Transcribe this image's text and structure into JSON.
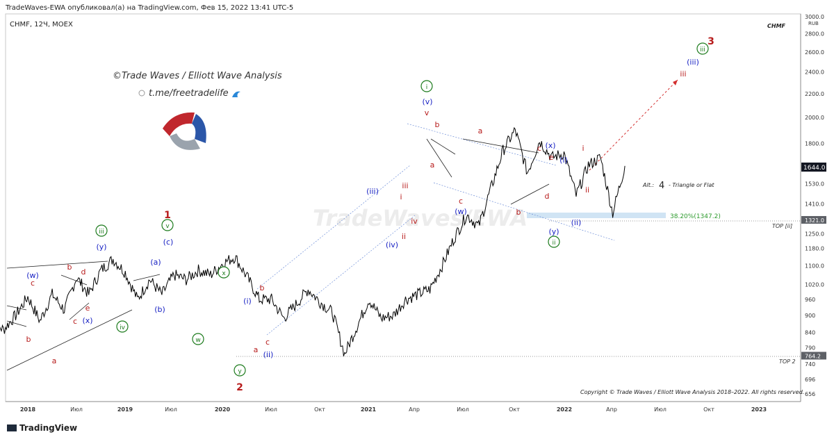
{
  "header": {
    "publisher_line": "TradeWaves-EWA опубликовал(а) на TradingView.com, Фев 15, 2022 13:41 UTC-5"
  },
  "chart_title": "CHMF, 12Ч, MOEX",
  "symbol_watermark": "CHMF",
  "branding": {
    "line1": "©Trade Waves / Elliott Wave Analysis",
    "line2": "t.me/freetradelife",
    "watermark": "TradeWaves/EWA",
    "copyright": "Copyright © Trade Waves / Elliott Wave Analysis 2018–2022. All rights reserved."
  },
  "footer": {
    "logo_text": "TradingView"
  },
  "colors": {
    "red": "#b71c1c",
    "blue": "#1a23c4",
    "green": "#1b7a1b",
    "price": "#000000",
    "fib": "#2e9b2e"
  },
  "chart_data": {
    "type": "line",
    "y_scale": "log",
    "y_axis_label": "RUB",
    "y_ticks": [
      3000,
      2800,
      2600,
      2400,
      2200,
      2000,
      1800,
      1644.0,
      1530,
      1410,
      1321.0,
      1250,
      1180,
      1100,
      1020,
      960,
      900,
      840,
      790,
      764.2,
      740,
      696,
      656
    ],
    "x_ticks": [
      "2018",
      "Июл",
      "2019",
      "Июл",
      "2020",
      "Июл",
      "Окт",
      "2021",
      "Апр",
      "Июл",
      "Окт",
      "2022",
      "Апр",
      "Июл",
      "Окт",
      "2023"
    ],
    "price_series": [
      [
        "2017-10",
        880
      ],
      [
        "2017-11",
        850
      ],
      [
        "2017-12",
        900
      ],
      [
        "2018-01",
        970
      ],
      [
        "2018-02",
        880
      ],
      [
        "2018-03",
        980
      ],
      [
        "2018-04",
        920
      ],
      [
        "2018-05",
        1050
      ],
      [
        "2018-06",
        980
      ],
      [
        "2018-07",
        1080
      ],
      [
        "2018-08",
        1130
      ],
      [
        "2018-09",
        1070
      ],
      [
        "2018-10",
        960
      ],
      [
        "2018-11",
        1040
      ],
      [
        "2018-12",
        980
      ],
      [
        "2019-01",
        1060
      ],
      [
        "2019-02",
        1040
      ],
      [
        "2019-03",
        1080
      ],
      [
        "2019-04",
        1060
      ],
      [
        "2019-05",
        1110
      ],
      [
        "2019-06",
        1140
      ],
      [
        "2019-07",
        1050
      ],
      [
        "2019-08",
        960
      ],
      [
        "2019-09",
        960
      ],
      [
        "2019-10",
        890
      ],
      [
        "2019-11",
        940
      ],
      [
        "2019-12",
        1000
      ],
      [
        "2020-01",
        950
      ],
      [
        "2020-02",
        910
      ],
      [
        "2020-03",
        770
      ],
      [
        "2020-04",
        860
      ],
      [
        "2020-05",
        960
      ],
      [
        "2020-06",
        890
      ],
      [
        "2020-07",
        900
      ],
      [
        "2020-08",
        960
      ],
      [
        "2020-09",
        980
      ],
      [
        "2020-10",
        1000
      ],
      [
        "2020-11",
        1100
      ],
      [
        "2020-12",
        1230
      ],
      [
        "2021-01",
        1350
      ],
      [
        "2021-02",
        1290
      ],
      [
        "2021-03",
        1500
      ],
      [
        "2021-04",
        1750
      ],
      [
        "2021-05",
        1900
      ],
      [
        "2021-06",
        1600
      ],
      [
        "2021-07",
        1820
      ],
      [
        "2021-08",
        1700
      ],
      [
        "2021-09",
        1730
      ],
      [
        "2021-10",
        1460
      ],
      [
        "2021-11",
        1650
      ],
      [
        "2021-12",
        1700
      ],
      [
        "2022-01",
        1360
      ],
      [
        "2022-02",
        1644
      ]
    ],
    "last_price_label": "1644.0",
    "fib_label": "38.20%(1347.2)",
    "level_labels": [
      {
        "text": "TOP [ii]",
        "price": 1321.0
      },
      {
        "text": "TOP 2",
        "price": 764.2
      }
    ],
    "alt_note": {
      "prefix": "Alt.:",
      "wave": "4",
      "text": "- Triangle or Flat"
    },
    "wave_labels": [
      {
        "t": "1",
        "color": "red",
        "size": "lg"
      },
      {
        "t": "2",
        "color": "red",
        "size": "lg"
      },
      {
        "t": "3",
        "color": "red",
        "size": "lg"
      },
      {
        "t": "iii",
        "color": "green",
        "circle": true
      },
      {
        "t": "v",
        "color": "green",
        "circle": true
      },
      {
        "t": "iv",
        "color": "green",
        "circle": true
      },
      {
        "t": "w",
        "color": "green",
        "circle": true
      },
      {
        "t": "x",
        "color": "green",
        "circle": true
      },
      {
        "t": "y",
        "color": "green",
        "circle": true
      },
      {
        "t": "i",
        "color": "green",
        "circle": true
      },
      {
        "t": "ii",
        "color": "green",
        "circle": true
      },
      {
        "t": "iii",
        "color": "green",
        "circle": true
      },
      {
        "t": "(w)",
        "color": "blue"
      },
      {
        "t": "(x)",
        "color": "blue"
      },
      {
        "t": "(y)",
        "color": "blue"
      },
      {
        "t": "(a)",
        "color": "blue"
      },
      {
        "t": "(b)",
        "color": "blue"
      },
      {
        "t": "(c)",
        "color": "blue"
      },
      {
        "t": "(i)",
        "color": "blue"
      },
      {
        "t": "(ii)",
        "color": "blue"
      },
      {
        "t": "(iii)",
        "color": "blue"
      },
      {
        "t": "(iv)",
        "color": "blue"
      },
      {
        "t": "(v)",
        "color": "blue"
      },
      {
        "t": "(w)",
        "color": "blue"
      },
      {
        "t": "(x)",
        "color": "blue"
      },
      {
        "t": "(y)",
        "color": "blue"
      },
      {
        "t": "(i)",
        "color": "blue"
      },
      {
        "t": "(ii)",
        "color": "blue"
      },
      {
        "t": "(iii)",
        "color": "blue"
      },
      {
        "t": "a",
        "color": "red"
      },
      {
        "t": "b",
        "color": "red"
      },
      {
        "t": "c",
        "color": "red"
      },
      {
        "t": "b",
        "color": "red"
      },
      {
        "t": "d",
        "color": "red"
      },
      {
        "t": "c",
        "color": "red"
      },
      {
        "t": "e",
        "color": "red"
      },
      {
        "t": "a",
        "color": "red"
      },
      {
        "t": "b",
        "color": "red"
      },
      {
        "t": "c",
        "color": "red"
      },
      {
        "t": "i",
        "color": "red"
      },
      {
        "t": "ii",
        "color": "red"
      },
      {
        "t": "iii",
        "color": "red"
      },
      {
        "t": "iv",
        "color": "red"
      },
      {
        "t": "v",
        "color": "red"
      },
      {
        "t": "a",
        "color": "red"
      },
      {
        "t": "b",
        "color": "red"
      },
      {
        "t": "a",
        "color": "red"
      },
      {
        "t": "c",
        "color": "red"
      },
      {
        "t": "b",
        "color": "red"
      },
      {
        "t": "c",
        "color": "red"
      },
      {
        "t": "d",
        "color": "red"
      },
      {
        "t": "e",
        "color": "red"
      },
      {
        "t": "i",
        "color": "red"
      },
      {
        "t": "ii",
        "color": "red"
      },
      {
        "t": "iii",
        "color": "red"
      }
    ]
  }
}
